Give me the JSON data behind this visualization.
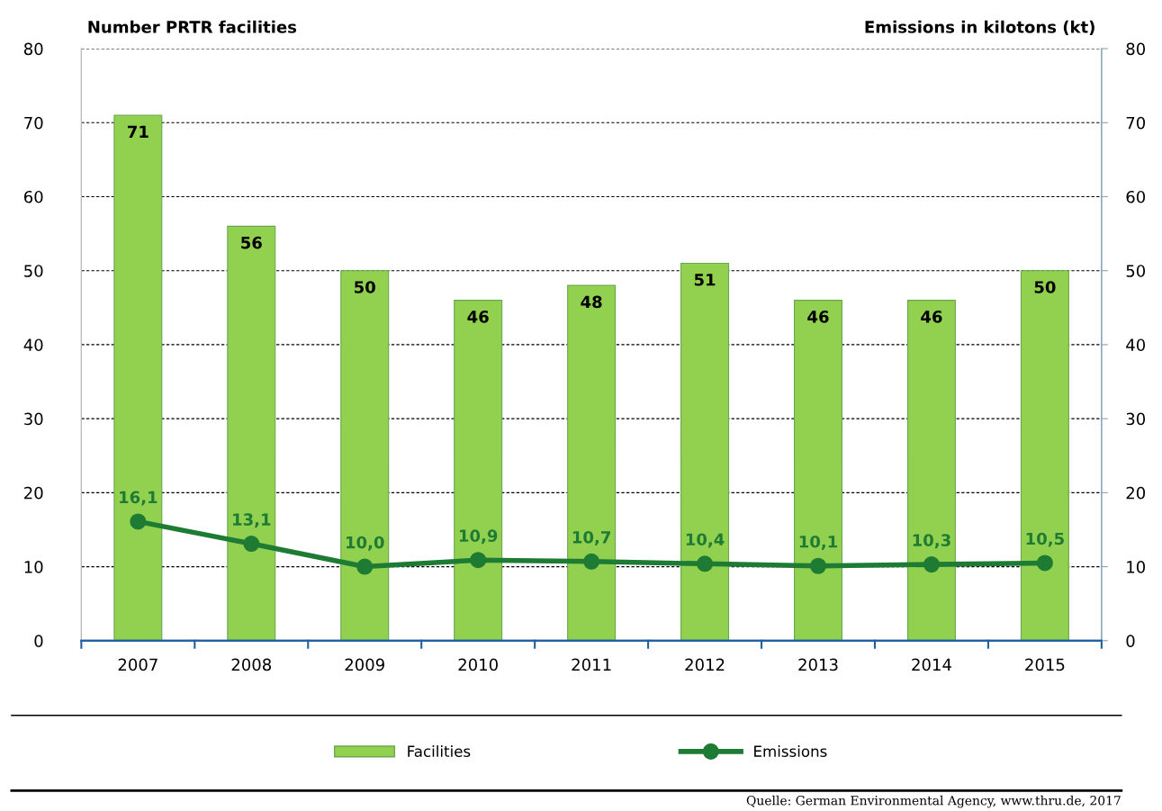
{
  "chart_data": {
    "type": "bar",
    "ylabel": "Number PRTR facilities",
    "y2label": "Emissions in kilotons (kt)",
    "categories": [
      "2007",
      "2008",
      "2009",
      "2010",
      "2011",
      "2012",
      "2013",
      "2014",
      "2015"
    ],
    "series": [
      {
        "name": "Facilities",
        "color": "#92d050",
        "values": [
          71,
          56,
          50,
          46,
          48,
          51,
          46,
          46,
          50
        ],
        "value_labels": [
          "71",
          "56",
          "50",
          "46",
          "48",
          "51",
          "46",
          "46",
          "50"
        ]
      },
      {
        "name": "Emissions",
        "type": "line",
        "color": "#1e7b34",
        "marker": "circle",
        "values": [
          16.1,
          13.1,
          10.0,
          10.9,
          10.7,
          10.4,
          10.1,
          10.3,
          10.5
        ],
        "value_labels": [
          "16,1",
          "13,1",
          "10,0",
          "10,9",
          "10,7",
          "10,4",
          "10,1",
          "10,3",
          "10,5"
        ]
      }
    ],
    "ylim": [
      0,
      80
    ],
    "yticks": [
      0,
      10,
      20,
      30,
      40,
      50,
      60,
      70,
      80
    ],
    "y2lim": [
      0,
      80
    ],
    "y2ticks": [
      0,
      10,
      20,
      30,
      40,
      50,
      60,
      70,
      80
    ],
    "grid": "y",
    "legend": "bottom",
    "annotations": [
      "Quelle: German Environmental Agency, www.thru.de, 2017"
    ]
  }
}
